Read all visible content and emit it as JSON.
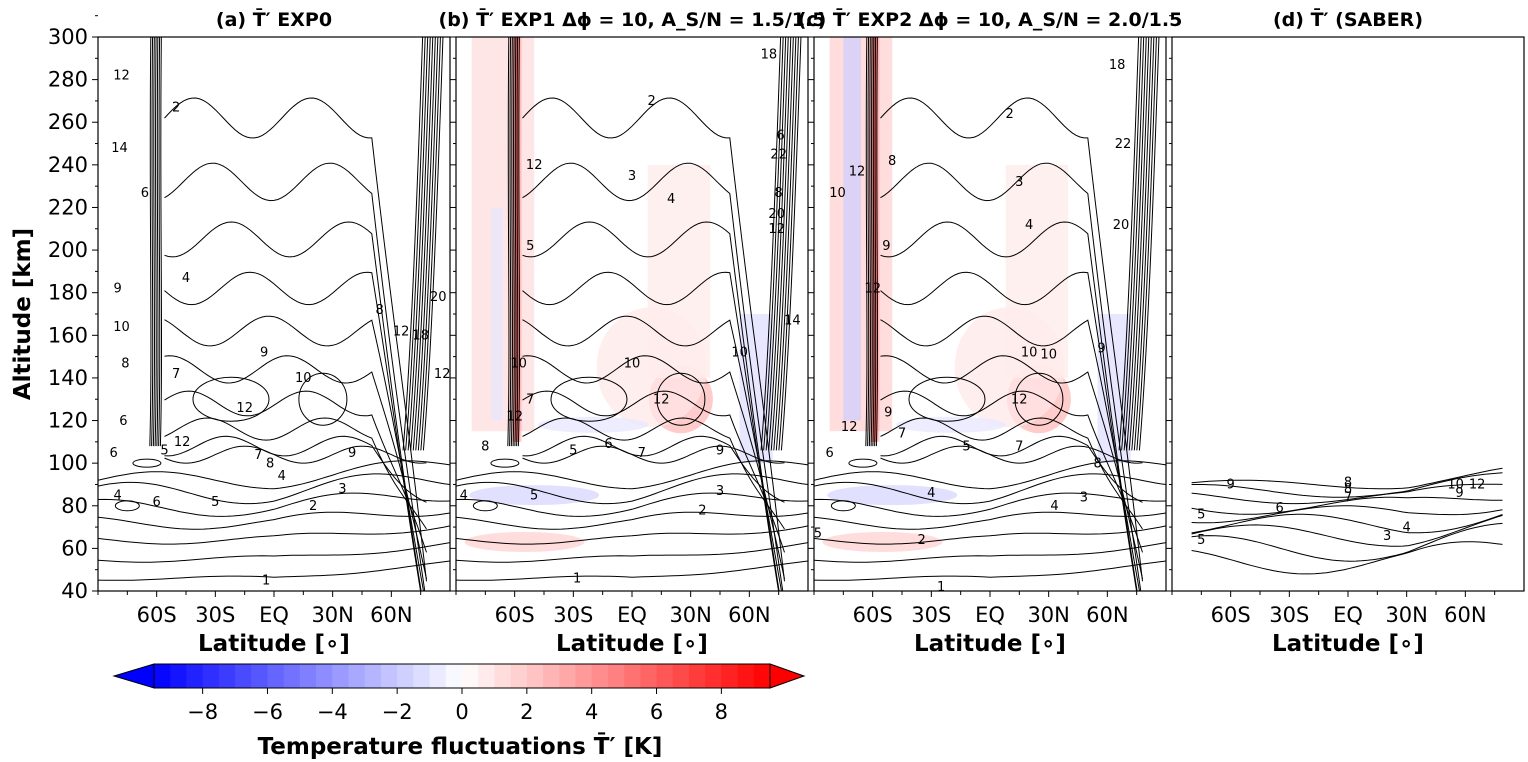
{
  "chart_data": [
    {
      "id": "a",
      "type": "contour",
      "title": "(a) T̄′ EXP0",
      "xlabel": "Latitude [∘]",
      "ylabel": "Altitude [km]",
      "x_ticklabels": [
        "60S",
        "30S",
        "EQ",
        "30N",
        "60N"
      ],
      "y_ticklabels": [
        "40",
        "60",
        "80",
        "100",
        "120",
        "140",
        "160",
        "180",
        "200",
        "220",
        "240",
        "260",
        "280",
        "300"
      ],
      "ylim": [
        40,
        300
      ],
      "filled_anomaly": false,
      "contour_labels": [
        "12",
        "2",
        "14",
        "6",
        "4",
        "9",
        "10",
        "8",
        "7",
        "9",
        "10",
        "6",
        "12",
        "12",
        "7",
        "5",
        "6",
        "8",
        "9",
        "4",
        "4",
        "6",
        "5",
        "3",
        "2",
        "1",
        "12",
        "20",
        "18",
        "12",
        "8"
      ]
    },
    {
      "id": "b",
      "type": "contour",
      "title": "(b) T̄′ EXP1 Δϕ = 10, A_S/N = 1.5/1.5",
      "xlabel": "Latitude [∘]",
      "x_ticklabels": [
        "60S",
        "30S",
        "EQ",
        "30N",
        "60N"
      ],
      "ylim": [
        40,
        300
      ],
      "filled_anomaly": true,
      "contour_labels": [
        "18",
        "2",
        "6",
        "3",
        "12",
        "4",
        "22",
        "8",
        "20",
        "12",
        "5",
        "14",
        "10",
        "10",
        "10",
        "12",
        "7",
        "12",
        "8",
        "5",
        "6",
        "7",
        "9",
        "4",
        "5",
        "3",
        "2",
        "1"
      ]
    },
    {
      "id": "c",
      "type": "contour",
      "title": "(c) T̄′ EXP2 Δϕ = 10, A_S/N = 2.0/1.5",
      "xlabel": "Latitude [∘]",
      "x_ticklabels": [
        "60S",
        "30S",
        "EQ",
        "30N",
        "60N"
      ],
      "ylim": [
        40,
        300
      ],
      "filled_anomaly": true,
      "contour_labels": [
        "18",
        "10",
        "12",
        "8",
        "2",
        "3",
        "22",
        "20",
        "4",
        "9",
        "12",
        "9",
        "10",
        "10",
        "9",
        "12",
        "7",
        "12",
        "6",
        "5",
        "7",
        "8",
        "4",
        "4",
        "3",
        "5",
        "2",
        "1"
      ]
    },
    {
      "id": "d",
      "type": "contour",
      "title": "(d) T̄′ (SABER)",
      "xlabel": "Latitude [∘]",
      "x_ticklabels": [
        "60S",
        "30S",
        "EQ",
        "30N",
        "60N"
      ],
      "ylim": [
        40,
        300
      ],
      "filled_anomaly": false,
      "contour_labels": [
        "9",
        "8",
        "8",
        "7",
        "10",
        "12",
        "9",
        "6",
        "5",
        "5",
        "3",
        "4"
      ]
    }
  ],
  "colorbar": {
    "label": "Temperature fluctuations T̄′ [K]",
    "ticks": [
      "−8",
      "−6",
      "−4",
      "−2",
      "0",
      "2",
      "4",
      "6",
      "8"
    ],
    "range": [
      -9.5,
      9.5
    ],
    "colormap": "bwr",
    "colors": {
      "min": "#0000ff",
      "mid": "#ffffff",
      "max": "#ff0000"
    }
  }
}
